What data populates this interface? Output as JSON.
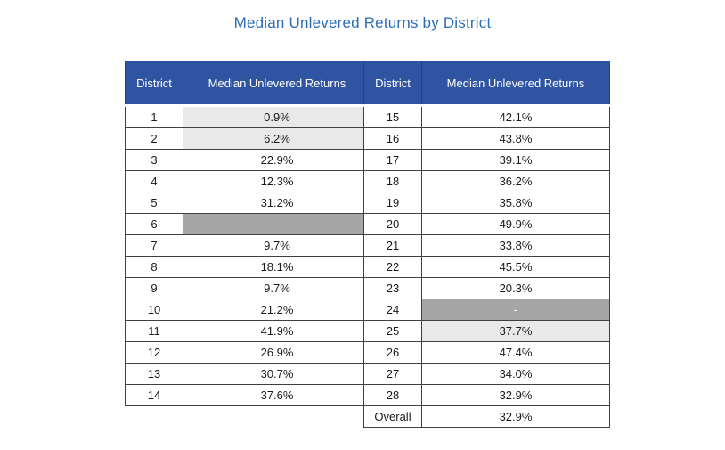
{
  "page": {
    "title": "Median Unlevered Returns by District"
  },
  "colors": {
    "title_text": "#2a6db5",
    "header_bg": "#2e54a2",
    "header_text": "#ffffff",
    "border": "#404040",
    "shade_light": "#e9e9e9",
    "shade_dark": "#a6a6a6",
    "body_text": "#1a1a1a"
  },
  "tables": [
    {
      "name": "districts-1-14",
      "headers": [
        "District",
        "Median Unlevered Returns"
      ],
      "rows": [
        [
          "1",
          "0.9%",
          "light"
        ],
        [
          "2",
          "6.2%",
          "light"
        ],
        [
          "3",
          "22.9%",
          "none"
        ],
        [
          "4",
          "12.3%",
          "none"
        ],
        [
          "5",
          "31.2%",
          "none"
        ],
        [
          "6",
          "-",
          "dark"
        ],
        [
          "7",
          "9.7%",
          "none"
        ],
        [
          "8",
          "18.1%",
          "none"
        ],
        [
          "9",
          "9.7%",
          "none"
        ],
        [
          "10",
          "21.2%",
          "none"
        ],
        [
          "11",
          "41.9%",
          "none"
        ],
        [
          "12",
          "26.9%",
          "none"
        ],
        [
          "13",
          "30.7%",
          "none"
        ],
        [
          "14",
          "37.6%",
          "none"
        ]
      ]
    },
    {
      "name": "districts-15-28-overall",
      "headers": [
        "District",
        "Median Unlevered Returns"
      ],
      "rows": [
        [
          "15",
          "42.1%",
          "none"
        ],
        [
          "16",
          "43.8%",
          "none"
        ],
        [
          "17",
          "39.1%",
          "none"
        ],
        [
          "18",
          "36.2%",
          "none"
        ],
        [
          "19",
          "35.8%",
          "none"
        ],
        [
          "20",
          "49.9%",
          "none"
        ],
        [
          "21",
          "33.8%",
          "none"
        ],
        [
          "22",
          "45.5%",
          "none"
        ],
        [
          "23",
          "20.3%",
          "none"
        ],
        [
          "24",
          "-",
          "dark"
        ],
        [
          "25",
          "37.7%",
          "light"
        ],
        [
          "26",
          "47.4%",
          "none"
        ],
        [
          "27",
          "34.0%",
          "none"
        ],
        [
          "28",
          "32.9%",
          "none"
        ],
        [
          "Overall",
          "32.9%",
          "none"
        ]
      ]
    }
  ],
  "chart_data": {
    "type": "table",
    "title": "Median Unlevered Returns by District",
    "columns": [
      "District",
      "Median Unlevered Returns"
    ],
    "rows": [
      {
        "district": "1",
        "median_unlevered_return": "0.9%"
      },
      {
        "district": "2",
        "median_unlevered_return": "6.2%"
      },
      {
        "district": "3",
        "median_unlevered_return": "22.9%"
      },
      {
        "district": "4",
        "median_unlevered_return": "12.3%"
      },
      {
        "district": "5",
        "median_unlevered_return": "31.2%"
      },
      {
        "district": "6",
        "median_unlevered_return": "-"
      },
      {
        "district": "7",
        "median_unlevered_return": "9.7%"
      },
      {
        "district": "8",
        "median_unlevered_return": "18.1%"
      },
      {
        "district": "9",
        "median_unlevered_return": "9.7%"
      },
      {
        "district": "10",
        "median_unlevered_return": "21.2%"
      },
      {
        "district": "11",
        "median_unlevered_return": "41.9%"
      },
      {
        "district": "12",
        "median_unlevered_return": "26.9%"
      },
      {
        "district": "13",
        "median_unlevered_return": "30.7%"
      },
      {
        "district": "14",
        "median_unlevered_return": "37.6%"
      },
      {
        "district": "15",
        "median_unlevered_return": "42.1%"
      },
      {
        "district": "16",
        "median_unlevered_return": "43.8%"
      },
      {
        "district": "17",
        "median_unlevered_return": "39.1%"
      },
      {
        "district": "18",
        "median_unlevered_return": "36.2%"
      },
      {
        "district": "19",
        "median_unlevered_return": "35.8%"
      },
      {
        "district": "20",
        "median_unlevered_return": "49.9%"
      },
      {
        "district": "21",
        "median_unlevered_return": "33.8%"
      },
      {
        "district": "22",
        "median_unlevered_return": "45.5%"
      },
      {
        "district": "23",
        "median_unlevered_return": "20.3%"
      },
      {
        "district": "24",
        "median_unlevered_return": "-"
      },
      {
        "district": "25",
        "median_unlevered_return": "37.7%"
      },
      {
        "district": "26",
        "median_unlevered_return": "47.4%"
      },
      {
        "district": "27",
        "median_unlevered_return": "34.0%"
      },
      {
        "district": "28",
        "median_unlevered_return": "32.9%"
      },
      {
        "district": "Overall",
        "median_unlevered_return": "32.9%"
      }
    ]
  }
}
